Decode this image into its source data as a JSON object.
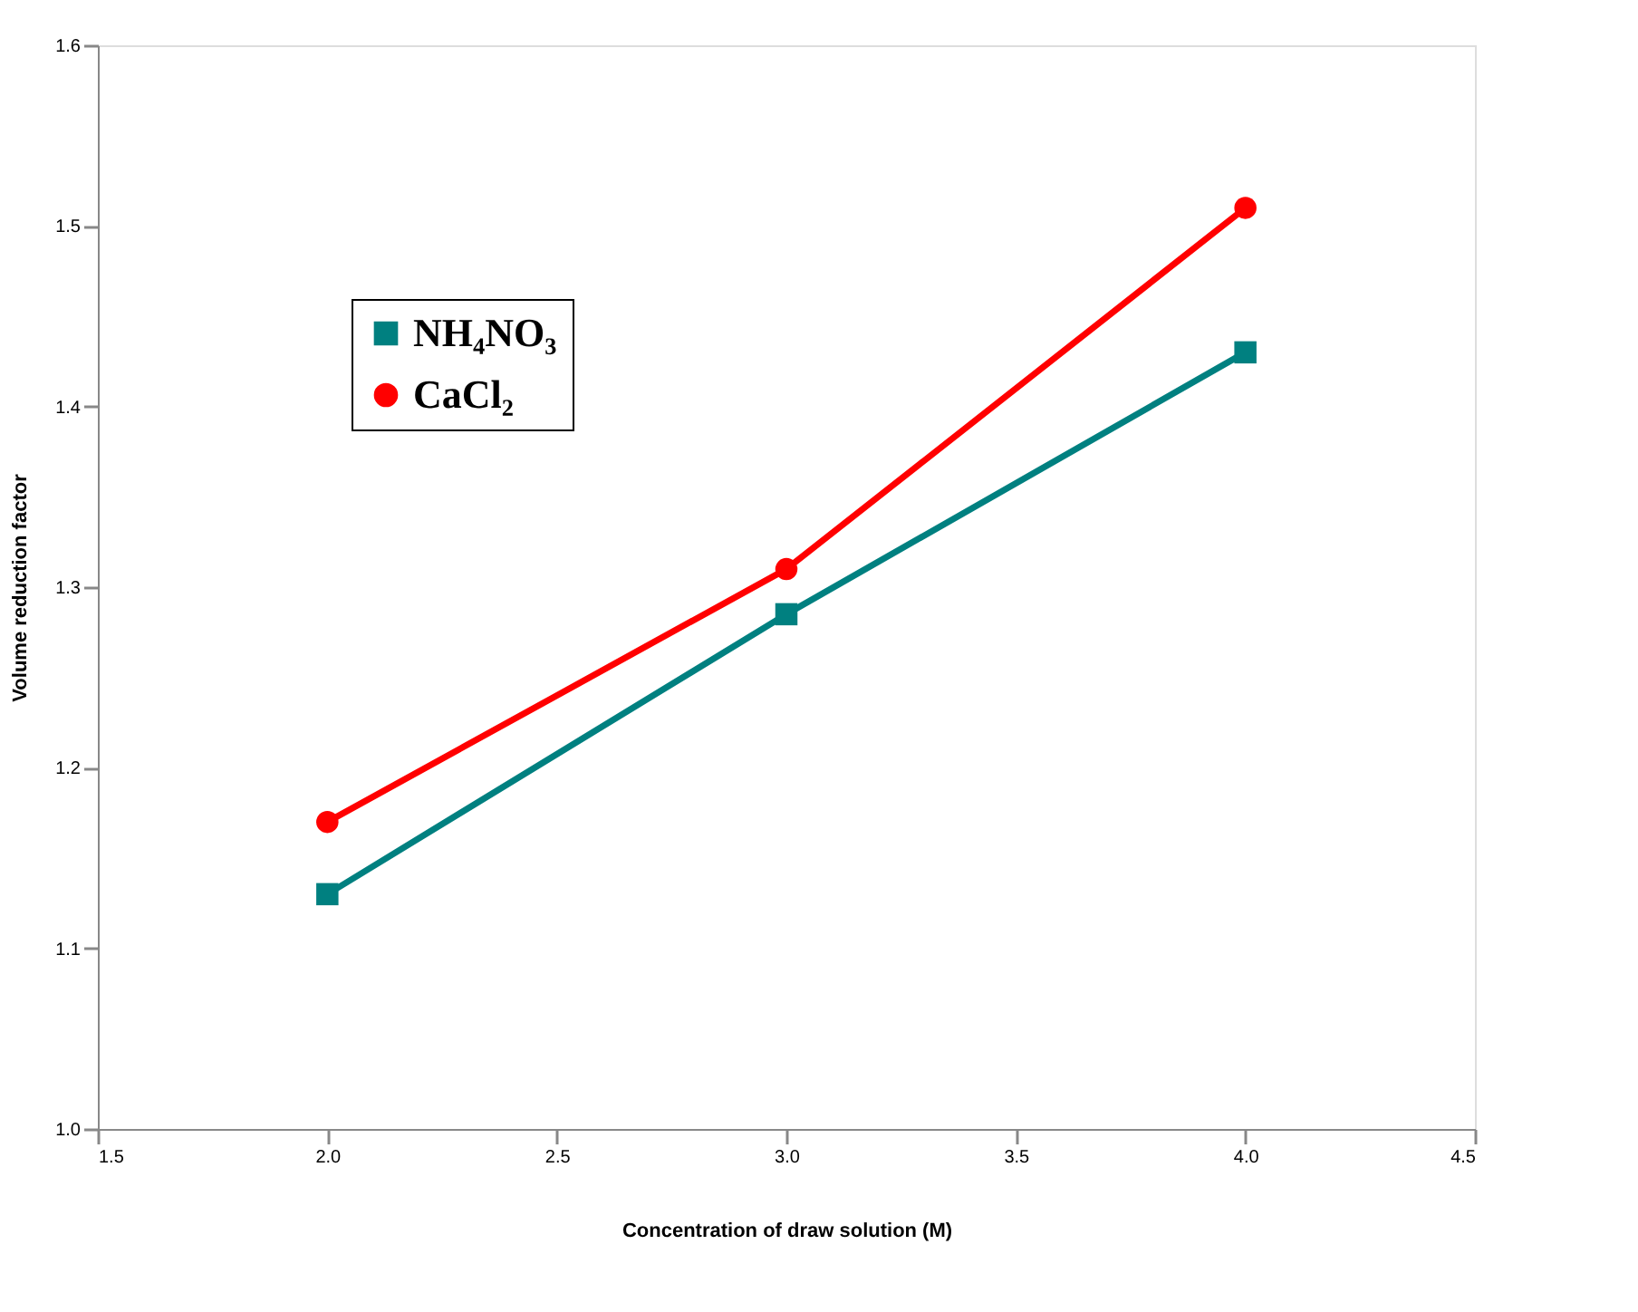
{
  "chart_data": {
    "type": "line",
    "xlabel": "Concentration of draw solution (M)",
    "ylabel": "Volume reduction factor",
    "x": [
      2.0,
      3.0,
      4.0
    ],
    "series": [
      {
        "name": "NH₄NO₃",
        "color": "#008080",
        "marker": "square",
        "values": [
          1.13,
          1.285,
          1.43
        ]
      },
      {
        "name": "CaCl₂",
        "color": "#ff0000",
        "marker": "circle",
        "values": [
          1.17,
          1.31,
          1.51
        ]
      }
    ],
    "xlim": [
      1.5,
      4.5
    ],
    "xticks": [
      {
        "value": 1.5,
        "label": "1.5"
      },
      {
        "value": 2,
        "label": "2.0"
      },
      {
        "value": 2.5,
        "label": "2.5"
      },
      {
        "value": 3,
        "label": "3.0"
      },
      {
        "value": 3.5,
        "label": "3.5"
      },
      {
        "value": 4,
        "label": "4.0"
      },
      {
        "value": 4.5,
        "label": "4.5"
      }
    ],
    "ylim": [
      1.0,
      1.6
    ],
    "yticks": [
      {
        "value": 1,
        "label": "1.0"
      },
      {
        "value": 1.1,
        "label": "1.1"
      },
      {
        "value": 1.2,
        "label": "1.2"
      },
      {
        "value": 1.3,
        "label": "1.3"
      },
      {
        "value": 1.4,
        "label": "1.4"
      },
      {
        "value": 1.5,
        "label": "1.5"
      },
      {
        "value": 1.6,
        "label": "1.6"
      }
    ],
    "grid": false,
    "legend": "top left",
    "line_style": "solid"
  }
}
